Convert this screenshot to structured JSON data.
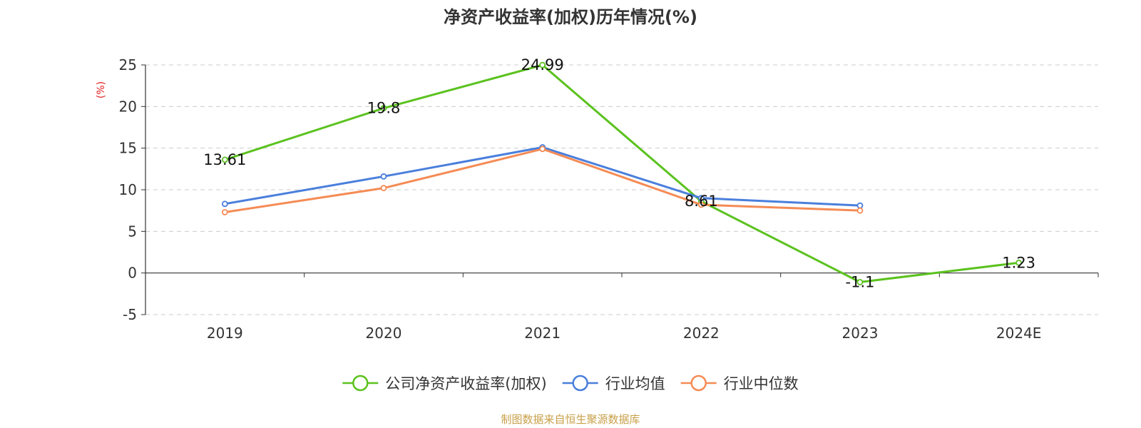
{
  "chart_data": {
    "type": "line",
    "title": "净资产收益率(加权)历年情况(%)",
    "ylabel": "(%)",
    "xlabel": "",
    "categories": [
      "2019",
      "2020",
      "2021",
      "2022",
      "2023",
      "2024E"
    ],
    "ylim": [
      -5,
      25
    ],
    "yticks": [
      25,
      20,
      15,
      10,
      5,
      0,
      -5
    ],
    "grid": true,
    "legend_position": "bottom",
    "series": [
      {
        "name": "公司净资产收益率(加权)",
        "color": "#5bc21f",
        "values": [
          13.61,
          19.8,
          24.99,
          8.61,
          -1.1,
          1.23
        ],
        "labels": [
          "13.61",
          "19.8",
          "24.99",
          "8.61",
          "-1.1",
          "1.23"
        ]
      },
      {
        "name": "行业均值",
        "color": "#4a7fdc",
        "values": [
          8.3,
          11.6,
          15.1,
          9.0,
          8.1,
          null
        ]
      },
      {
        "name": "行业中位数",
        "color": "#f58b55",
        "values": [
          7.3,
          10.2,
          14.9,
          8.2,
          7.5,
          null
        ]
      }
    ],
    "ylabel_color": "#e02020"
  },
  "source_text": "制图数据来自恒生聚源数据库",
  "source_color": "#c9a04a"
}
